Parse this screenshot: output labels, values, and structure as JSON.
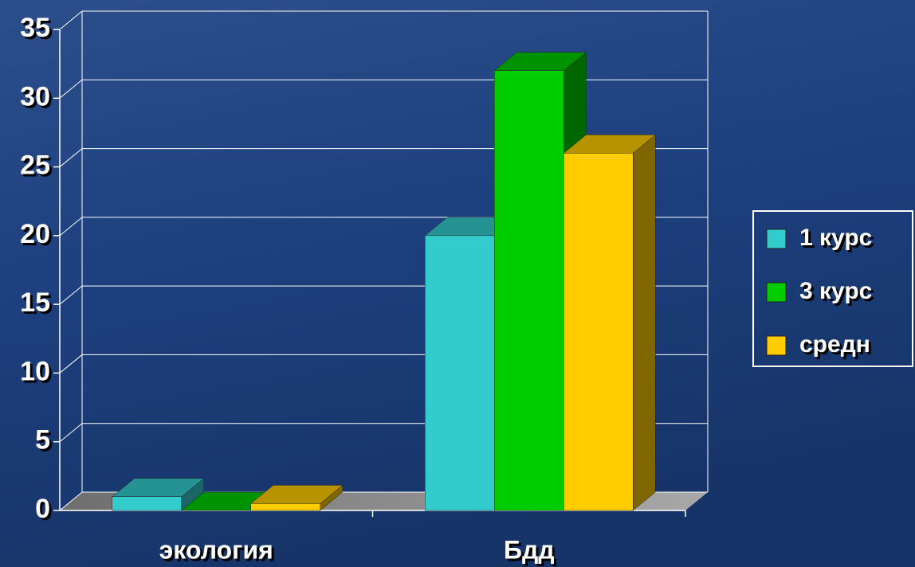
{
  "chart_data": {
    "type": "bar3d",
    "categories": [
      "экология",
      "Бдд"
    ],
    "series": [
      {
        "name": "1 курс",
        "color": "#33CCCC",
        "values": [
          1,
          20
        ]
      },
      {
        "name": "3 курс",
        "color": "#00CC00",
        "values": [
          0,
          32
        ]
      },
      {
        "name": "средн",
        "color": "#FFCC00",
        "values": [
          0.5,
          26
        ]
      }
    ],
    "ylim": [
      0,
      35
    ],
    "yticks": [
      0,
      5,
      10,
      15,
      20,
      25,
      30,
      35
    ],
    "grid": true,
    "legend": "right"
  }
}
